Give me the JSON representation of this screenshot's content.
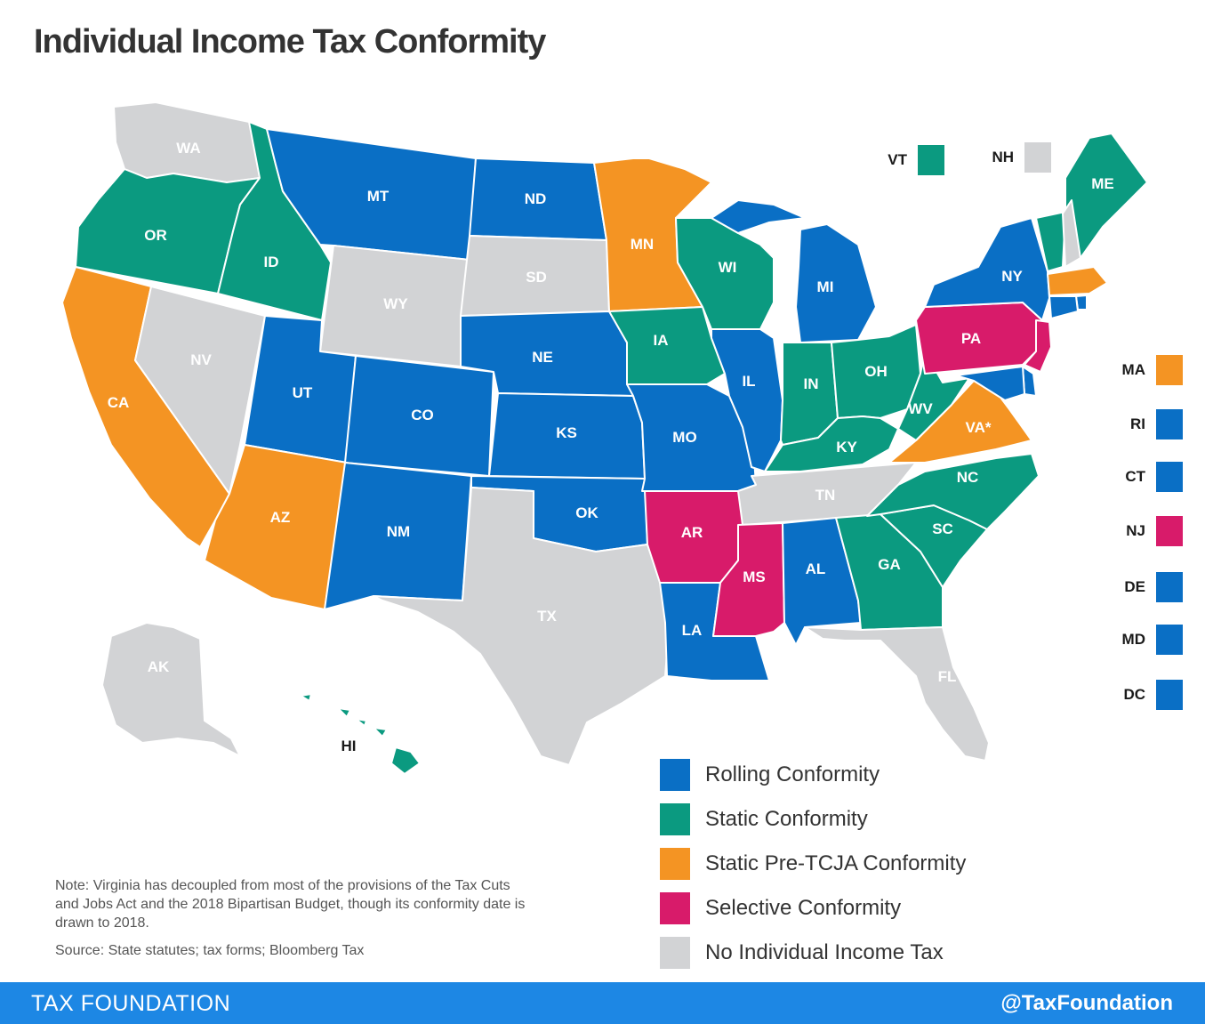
{
  "title": "Individual Income Tax Conformity",
  "colors": {
    "rolling": "#0a6fc5",
    "static": "#0b9a80",
    "pre_tcja": "#f49423",
    "selective": "#d81b6a",
    "none": "#d2d3d5"
  },
  "legend": [
    {
      "key": "rolling",
      "label": "Rolling Conformity"
    },
    {
      "key": "static",
      "label": "Static Conformity"
    },
    {
      "key": "pre_tcja",
      "label": "Static Pre-TCJA Conformity"
    },
    {
      "key": "selective",
      "label": "Selective Conformity"
    },
    {
      "key": "none",
      "label": "No Individual Income Tax"
    }
  ],
  "states": [
    {
      "abbr": "WA",
      "category": "none"
    },
    {
      "abbr": "OR",
      "category": "static"
    },
    {
      "abbr": "CA",
      "category": "pre_tcja"
    },
    {
      "abbr": "NV",
      "category": "none"
    },
    {
      "abbr": "ID",
      "category": "static"
    },
    {
      "abbr": "MT",
      "category": "rolling"
    },
    {
      "abbr": "WY",
      "category": "none"
    },
    {
      "abbr": "UT",
      "category": "rolling"
    },
    {
      "abbr": "AZ",
      "category": "pre_tcja"
    },
    {
      "abbr": "CO",
      "category": "rolling"
    },
    {
      "abbr": "NM",
      "category": "rolling"
    },
    {
      "abbr": "ND",
      "category": "rolling"
    },
    {
      "abbr": "SD",
      "category": "none"
    },
    {
      "abbr": "NE",
      "category": "rolling"
    },
    {
      "abbr": "KS",
      "category": "rolling"
    },
    {
      "abbr": "OK",
      "category": "rolling"
    },
    {
      "abbr": "TX",
      "category": "none"
    },
    {
      "abbr": "MN",
      "category": "pre_tcja"
    },
    {
      "abbr": "IA",
      "category": "static"
    },
    {
      "abbr": "MO",
      "category": "rolling"
    },
    {
      "abbr": "AR",
      "category": "selective"
    },
    {
      "abbr": "LA",
      "category": "rolling"
    },
    {
      "abbr": "WI",
      "category": "static"
    },
    {
      "abbr": "IL",
      "category": "rolling"
    },
    {
      "abbr": "MI",
      "category": "rolling"
    },
    {
      "abbr": "IN",
      "category": "static"
    },
    {
      "abbr": "OH",
      "category": "static"
    },
    {
      "abbr": "KY",
      "category": "static"
    },
    {
      "abbr": "TN",
      "category": "none"
    },
    {
      "abbr": "MS",
      "category": "selective"
    },
    {
      "abbr": "AL",
      "category": "rolling"
    },
    {
      "abbr": "GA",
      "category": "static"
    },
    {
      "abbr": "FL",
      "category": "none"
    },
    {
      "abbr": "SC",
      "category": "static"
    },
    {
      "abbr": "NC",
      "category": "static"
    },
    {
      "abbr": "VA*",
      "category": "pre_tcja"
    },
    {
      "abbr": "WV",
      "category": "static"
    },
    {
      "abbr": "PA",
      "category": "selective"
    },
    {
      "abbr": "NY",
      "category": "rolling"
    },
    {
      "abbr": "ME",
      "category": "static"
    },
    {
      "abbr": "AK",
      "category": "none"
    },
    {
      "abbr": "HI",
      "category": "static"
    }
  ],
  "small_states": [
    {
      "abbr": "VT",
      "category": "static"
    },
    {
      "abbr": "NH",
      "category": "none"
    },
    {
      "abbr": "MA",
      "category": "pre_tcja"
    },
    {
      "abbr": "RI",
      "category": "rolling"
    },
    {
      "abbr": "CT",
      "category": "rolling"
    },
    {
      "abbr": "NJ",
      "category": "selective"
    },
    {
      "abbr": "DE",
      "category": "rolling"
    },
    {
      "abbr": "MD",
      "category": "rolling"
    },
    {
      "abbr": "DC",
      "category": "rolling"
    }
  ],
  "note": "Note: Virginia has decoupled from most of the provisions of the Tax Cuts and Jobs Act and the 2018 Bipartisan Budget, though its conformity date is drawn to 2018.",
  "source": "Source: State statutes; tax forms; Bloomberg Tax",
  "footer": {
    "left": "TAX FOUNDATION",
    "right": "@TaxFoundation"
  }
}
